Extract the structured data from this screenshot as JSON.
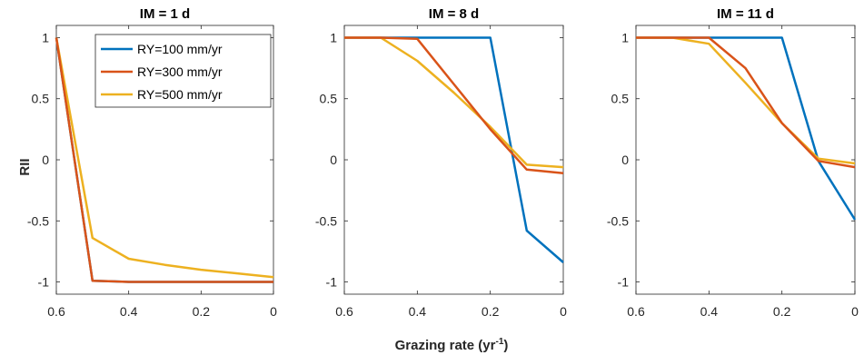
{
  "figure": {
    "xlabel_main": "Grazing rate (yr",
    "xlabel_sup": "-1",
    "xlabel_close": ")",
    "ylabel": "RII"
  },
  "legend": {
    "entries": [
      "RY=100 mm/yr",
      "RY=300 mm/yr",
      "RY=500 mm/yr"
    ],
    "placement": "top-right of first panel"
  },
  "colors": {
    "RY=100 mm/yr": "#0072BD",
    "RY=300 mm/yr": "#D95319",
    "RY=500 mm/yr": "#EDB120"
  },
  "chart_data": [
    {
      "type": "line",
      "title": "IM = 1 d",
      "x": [
        0.6,
        0.5,
        0.4,
        0.3,
        0.2,
        0.1,
        0
      ],
      "xlim": [
        0.6,
        0
      ],
      "ylim": [
        -1.1,
        1.1
      ],
      "xticks": [
        0.6,
        0.4,
        0.2,
        0
      ],
      "xtick_labels": [
        "0.6",
        "0.4",
        "0.2",
        "0"
      ],
      "yticks": [
        1,
        0.5,
        0,
        -0.5,
        -1
      ],
      "ytick_labels": [
        "1",
        "0.5",
        "0",
        "-0.5",
        "-1"
      ],
      "series": [
        {
          "name": "RY=100 mm/yr",
          "values": [
            1.0,
            -0.99,
            -1.0,
            -1.0,
            -1.0,
            -1.0,
            -1.0
          ]
        },
        {
          "name": "RY=300 mm/yr",
          "values": [
            1.0,
            -0.99,
            -1.0,
            -1.0,
            -1.0,
            -1.0,
            -1.0
          ]
        },
        {
          "name": "RY=500 mm/yr",
          "values": [
            1.0,
            -0.64,
            -0.81,
            -0.86,
            -0.9,
            -0.93,
            -0.96
          ]
        }
      ]
    },
    {
      "type": "line",
      "title": "IM = 8 d",
      "x": [
        0.6,
        0.5,
        0.4,
        0.3,
        0.2,
        0.1,
        0
      ],
      "xlim": [
        0.6,
        0
      ],
      "ylim": [
        -1.1,
        1.1
      ],
      "xticks": [
        0.6,
        0.4,
        0.2,
        0
      ],
      "xtick_labels": [
        "0.6",
        "0.4",
        "0.2",
        "0"
      ],
      "yticks": [
        1,
        0.5,
        0,
        -0.5,
        -1
      ],
      "ytick_labels": [
        "1",
        "0.5",
        "0",
        "-0.5",
        "-1"
      ],
      "series": [
        {
          "name": "RY=100 mm/yr",
          "values": [
            1.0,
            1.0,
            1.0,
            1.0,
            1.0,
            -0.58,
            -0.84
          ]
        },
        {
          "name": "RY=300 mm/yr",
          "values": [
            1.0,
            1.0,
            0.99,
            0.62,
            0.25,
            -0.08,
            -0.11
          ]
        },
        {
          "name": "RY=500 mm/yr",
          "values": [
            1.0,
            1.0,
            0.81,
            0.55,
            0.27,
            -0.04,
            -0.06
          ]
        }
      ]
    },
    {
      "type": "line",
      "title": "IM = 11 d",
      "x": [
        0.6,
        0.5,
        0.4,
        0.3,
        0.2,
        0.1,
        0
      ],
      "xlim": [
        0.6,
        0
      ],
      "ylim": [
        -1.1,
        1.1
      ],
      "xticks": [
        0.6,
        0.4,
        0.2,
        0
      ],
      "xtick_labels": [
        "0.6",
        "0.4",
        "0.2",
        "0"
      ],
      "yticks": [
        1,
        0.5,
        0,
        -0.5,
        -1
      ],
      "ytick_labels": [
        "1",
        "0.5",
        "0",
        "-0.5",
        "-1"
      ],
      "series": [
        {
          "name": "RY=100 mm/yr",
          "values": [
            1.0,
            1.0,
            1.0,
            1.0,
            1.0,
            -0.01,
            -0.49
          ]
        },
        {
          "name": "RY=300 mm/yr",
          "values": [
            1.0,
            1.0,
            1.0,
            0.75,
            0.3,
            -0.01,
            -0.06
          ]
        },
        {
          "name": "RY=500 mm/yr",
          "values": [
            1.0,
            1.0,
            0.95,
            0.63,
            0.3,
            0.01,
            -0.03
          ]
        }
      ]
    }
  ]
}
